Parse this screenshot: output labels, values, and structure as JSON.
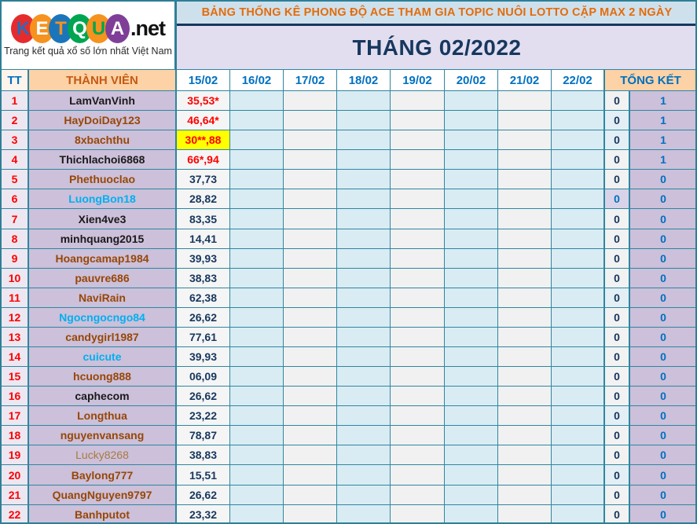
{
  "logo": {
    "letters": [
      {
        "char": "K",
        "bg": "#e62b2e",
        "color": "#2b6cb8"
      },
      {
        "char": "E",
        "bg": "#f6921e",
        "color": "#ffffff"
      },
      {
        "char": "T",
        "bg": "#1b75bb",
        "color": "#f6921e"
      },
      {
        "char": "Q",
        "bg": "#00a551",
        "color": "#ffffff"
      },
      {
        "char": "U",
        "bg": "#f6921e",
        "color": "#00a551"
      },
      {
        "char": "A",
        "bg": "#7f3f98",
        "color": "#ffffff"
      }
    ],
    "suffix": ".net",
    "tagline": "Trang kết quả xổ số lớn nhất Việt Nam"
  },
  "banner": {
    "title": "BẢNG THỐNG KÊ PHONG ĐỘ ACE THAM GIA TOPIC NUÔI LOTTO CẶP MAX 2 NGÀY"
  },
  "month_header": {
    "title": "THÁNG 02/2022"
  },
  "colors": {
    "border_teal": "#2e86a0",
    "banner_bg": "#cfe0ed",
    "banner_text": "#e36c0a",
    "month_bg": "#e2def0",
    "month_text": "#17375e",
    "header_peach": "#fcd2a6",
    "name_purple": "#ccc0da",
    "empty_blue": "#d9ecf3",
    "empty_gray": "#f1f1f1",
    "highlight_yellow": "#ffff00",
    "value_red": "#ff0000",
    "value_navy": "#17375e",
    "link_blue": "#0070c0",
    "name_brown": "#974706",
    "name_cyan": "#00b0f0"
  },
  "table": {
    "col_tt": "TT",
    "col_member": "THÀNH VIÊN",
    "date_columns": [
      "15/02",
      "16/02",
      "17/02",
      "18/02",
      "19/02",
      "20/02",
      "21/02",
      "22/02"
    ],
    "col_total": "TỔNG KẾT",
    "rows": [
      {
        "tt": "1",
        "name": "LamVanVinh",
        "name_style": "black",
        "day1": "35,53*",
        "day1_style": "red",
        "day1_highlight": false,
        "zero": "0",
        "zero_style": "plain",
        "total": "1"
      },
      {
        "tt": "2",
        "name": "HayDoiDay123",
        "name_style": "brown",
        "day1": "46,64*",
        "day1_style": "red",
        "day1_highlight": false,
        "zero": "0",
        "zero_style": "tint",
        "total": "1"
      },
      {
        "tt": "3",
        "name": "8xbachthu",
        "name_style": "brown",
        "day1": "30**,88",
        "day1_style": "red",
        "day1_highlight": true,
        "zero": "0",
        "zero_style": "tint",
        "total": "1"
      },
      {
        "tt": "4",
        "name": "Thichlachoi6868",
        "name_style": "black",
        "day1": "66*,94",
        "day1_style": "red",
        "day1_highlight": false,
        "zero": "0",
        "zero_style": "plain",
        "total": "1"
      },
      {
        "tt": "5",
        "name": "Phethuoclao",
        "name_style": "brown",
        "day1": "37,73",
        "day1_style": "navy",
        "day1_highlight": false,
        "zero": "0",
        "zero_style": "plain",
        "total": "0"
      },
      {
        "tt": "6",
        "name": "LuongBon18",
        "name_style": "cyan",
        "day1": "28,82",
        "day1_style": "navy",
        "day1_highlight": false,
        "zero": "0",
        "zero_style": "accent",
        "total": "0"
      },
      {
        "tt": "7",
        "name": "Xien4ve3",
        "name_style": "black",
        "day1": "83,35",
        "day1_style": "navy",
        "day1_highlight": false,
        "zero": "0",
        "zero_style": "plain",
        "total": "0"
      },
      {
        "tt": "8",
        "name": "minhquang2015",
        "name_style": "black",
        "day1": "14,41",
        "day1_style": "navy",
        "day1_highlight": false,
        "zero": "0",
        "zero_style": "plain",
        "total": "0"
      },
      {
        "tt": "9",
        "name": "Hoangcamap1984",
        "name_style": "brown",
        "day1": "39,93",
        "day1_style": "navy",
        "day1_highlight": false,
        "zero": "0",
        "zero_style": "plain",
        "total": "0"
      },
      {
        "tt": "10",
        "name": "pauvre686",
        "name_style": "brown",
        "day1": "38,83",
        "day1_style": "navy",
        "day1_highlight": false,
        "zero": "0",
        "zero_style": "plain",
        "total": "0"
      },
      {
        "tt": "11",
        "name": "NaviRain",
        "name_style": "brown",
        "day1": "62,38",
        "day1_style": "navy",
        "day1_highlight": false,
        "zero": "0",
        "zero_style": "tint",
        "total": "0"
      },
      {
        "tt": "12",
        "name": "Ngocngocngo84",
        "name_style": "cyan",
        "day1": "26,62",
        "day1_style": "navy",
        "day1_highlight": false,
        "zero": "0",
        "zero_style": "plain",
        "total": "0"
      },
      {
        "tt": "13",
        "name": "candygirl1987",
        "name_style": "brown",
        "day1": "77,61",
        "day1_style": "navy",
        "day1_highlight": false,
        "zero": "0",
        "zero_style": "plain",
        "total": "0"
      },
      {
        "tt": "14",
        "name": "cuicute",
        "name_style": "cyan",
        "day1": "39,93",
        "day1_style": "navy",
        "day1_highlight": false,
        "zero": "0",
        "zero_style": "plain",
        "total": "0"
      },
      {
        "tt": "15",
        "name": "hcuong888",
        "name_style": "brown",
        "day1": "06,09",
        "day1_style": "navy",
        "day1_highlight": false,
        "zero": "0",
        "zero_style": "plain",
        "total": "0"
      },
      {
        "tt": "16",
        "name": "caphecom",
        "name_style": "black",
        "day1": "26,62",
        "day1_style": "navy",
        "day1_highlight": false,
        "zero": "0",
        "zero_style": "plain",
        "total": "0"
      },
      {
        "tt": "17",
        "name": "Longthua",
        "name_style": "brown",
        "day1": "23,22",
        "day1_style": "navy",
        "day1_highlight": false,
        "zero": "0",
        "zero_style": "tint",
        "total": "0"
      },
      {
        "tt": "18",
        "name": "nguyenvansang",
        "name_style": "brown",
        "day1": "78,87",
        "day1_style": "navy",
        "day1_highlight": false,
        "zero": "0",
        "zero_style": "plain",
        "total": "0"
      },
      {
        "tt": "19",
        "name": "Lucky8268",
        "name_style": "tan",
        "day1": "38,83",
        "day1_style": "navy",
        "day1_highlight": false,
        "zero": "0",
        "zero_style": "plain",
        "total": "0"
      },
      {
        "tt": "20",
        "name": "Baylong777",
        "name_style": "brown",
        "day1": "15,51",
        "day1_style": "navy",
        "day1_highlight": false,
        "zero": "0",
        "zero_style": "tint",
        "total": "0"
      },
      {
        "tt": "21",
        "name": "QuangNguyen9797",
        "name_style": "brown",
        "day1": "26,62",
        "day1_style": "navy",
        "day1_highlight": false,
        "zero": "0",
        "zero_style": "plain",
        "total": "0"
      },
      {
        "tt": "22",
        "name": "Banhputot",
        "name_style": "brown",
        "day1": "23,32",
        "day1_style": "navy",
        "day1_highlight": false,
        "zero": "0",
        "zero_style": "plain",
        "total": "0"
      }
    ]
  }
}
